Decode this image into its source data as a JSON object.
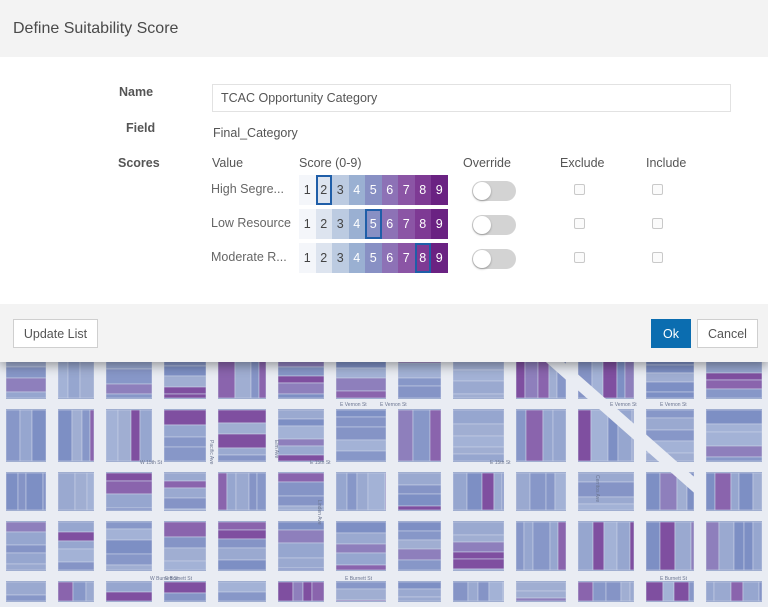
{
  "dialog": {
    "title": "Define Suitability Score",
    "name_label": "Name",
    "name_value": "TCAC Opportunity Category",
    "field_label": "Field",
    "field_value": "Final_Category",
    "scores_label": "Scores",
    "columns": {
      "value": "Value",
      "score": "Score (0-9)",
      "override": "Override",
      "exclude": "Exclude",
      "include": "Include"
    },
    "scale": [
      "1",
      "2",
      "3",
      "4",
      "5",
      "6",
      "7",
      "8",
      "9"
    ],
    "scale_colors": [
      "#f4f6fa",
      "#dde4ef",
      "#bccbe1",
      "#9ab0d2",
      "#8890c4",
      "#8d72b6",
      "#8b55a5",
      "#7e3a94",
      "#6a2282"
    ],
    "scale_text_colors": [
      "#444",
      "#444",
      "#444",
      "#ffffff",
      "#ffffff",
      "#ffffff",
      "#ffffff",
      "#ffffff",
      "#ffffff"
    ],
    "rows": [
      {
        "label": "High Segre...",
        "score": 2,
        "override": false,
        "exclude": false,
        "include": false
      },
      {
        "label": "Low Resource",
        "score": 5,
        "override": false,
        "exclude": false,
        "include": false
      },
      {
        "label": "Moderate R...",
        "score": 8,
        "override": false,
        "exclude": false,
        "include": false
      }
    ],
    "footer": {
      "update_label": "Update List",
      "ok_label": "Ok",
      "cancel_label": "Cancel"
    },
    "accent_color": "#0b6db0"
  },
  "map": {
    "street_labels": [
      "W 15th St",
      "E 15th St",
      "E 15th St",
      "E Vernon St",
      "E Vernon St",
      "E Vernon St",
      "E Vernon St",
      "E Burnett St",
      "E Burnett St",
      "W Burnett St",
      "E Burnett St",
      "Pacific Ave",
      "Elm Ave",
      "Linden Ave",
      "Cerritos Ave"
    ]
  }
}
